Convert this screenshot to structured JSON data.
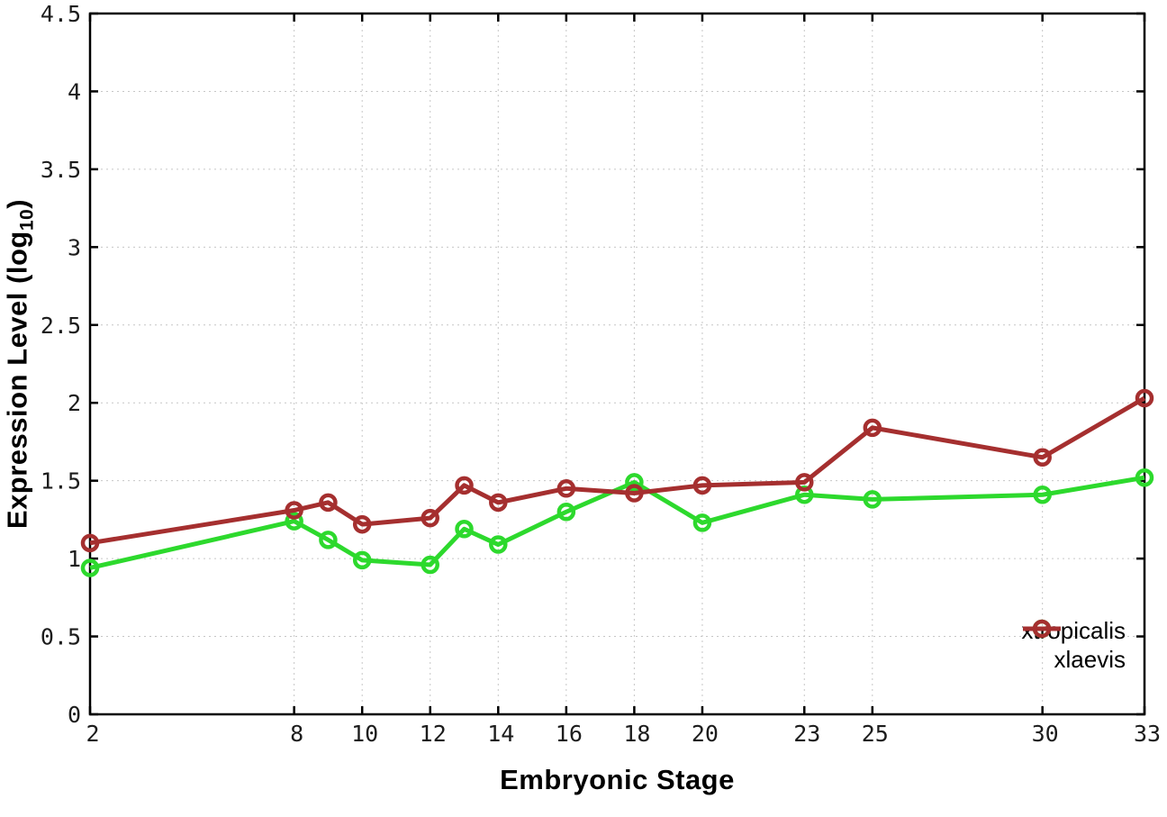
{
  "chart_data": {
    "type": "line",
    "title": "",
    "xlabel": "Embryonic Stage",
    "ylabel": {
      "text": "Expression Level (log",
      "sub": "10",
      "end": ")"
    },
    "x": [
      2,
      8,
      9,
      10,
      12,
      13,
      14,
      16,
      18,
      20,
      23,
      25,
      30,
      33
    ],
    "series": [
      {
        "name": "xtropicalis",
        "color": "#2dd92d",
        "values": [
          0.94,
          1.24,
          1.12,
          0.99,
          0.96,
          1.19,
          1.09,
          1.3,
          1.49,
          1.23,
          1.41,
          1.38,
          1.41,
          1.52
        ]
      },
      {
        "name": "xlaevis",
        "color": "#a52f2f",
        "values": [
          1.1,
          1.31,
          1.36,
          1.22,
          1.26,
          1.47,
          1.36,
          1.45,
          1.42,
          1.47,
          1.49,
          1.84,
          1.65,
          2.03
        ]
      }
    ],
    "xticks": {
      "values": [
        2,
        8,
        10,
        12,
        14,
        16,
        18,
        20,
        23,
        25,
        30,
        33
      ],
      "labels": [
        "2",
        "8",
        "10",
        "12",
        "14",
        "16",
        "18",
        "20",
        "23",
        "25",
        "30",
        "33"
      ]
    },
    "yticks": {
      "values": [
        0,
        0.5,
        1,
        1.5,
        2,
        2.5,
        3,
        3.5,
        4,
        4.5
      ],
      "labels": [
        "0",
        "0.5",
        "1",
        "1.5",
        "2",
        "2.5",
        "3",
        "3.5",
        "4",
        "4.5"
      ]
    },
    "xlim": [
      2,
      33
    ],
    "ylim": [
      0,
      4.5
    ],
    "grid": true,
    "legend_position": "inside-bottom-right",
    "colors": {
      "grid": "#c6c6c6",
      "border": "#000000",
      "tick_text": "#1c1c1c"
    }
  },
  "legend": {
    "items": [
      {
        "label": "xtropicalis"
      },
      {
        "label": "xlaevis"
      }
    ]
  }
}
